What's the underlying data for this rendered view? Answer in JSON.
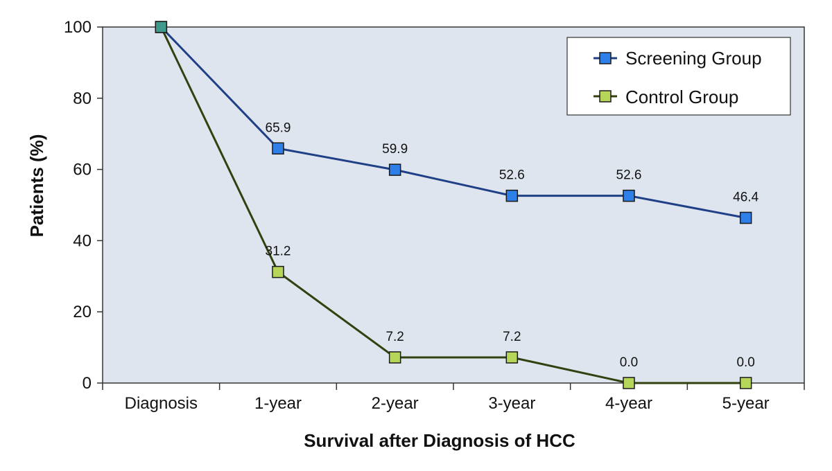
{
  "chart_data": {
    "type": "line",
    "title": "",
    "xlabel": "Survival after Diagnosis of HCC",
    "ylabel": "Patients  (%)",
    "categories": [
      "Diagnosis",
      "1-year",
      "2-year",
      "3-year",
      "4-year",
      "5-year"
    ],
    "ylim": [
      0,
      100
    ],
    "yticks": [
      0,
      20,
      40,
      60,
      80,
      100
    ],
    "grid": false,
    "legend_position": "top-right",
    "series": [
      {
        "name": "Screening Group",
        "values": [
          100,
          65.9,
          59.9,
          52.6,
          52.6,
          46.4
        ],
        "labels": [
          "",
          "65.9",
          "59.9",
          "52.6",
          "52.6",
          "46.4"
        ],
        "line_color": "#1f3f87",
        "marker_color": "#2f7fe8"
      },
      {
        "name": "Control Group",
        "values": [
          100,
          31.2,
          7.2,
          7.2,
          0.0,
          0.0
        ],
        "labels": [
          "",
          "31.2",
          "7.2",
          "7.2",
          "0.0",
          "0.0"
        ],
        "line_color": "#33400f",
        "marker_color": "#b6d65a"
      }
    ],
    "plot_background": "#dfe5ee"
  }
}
